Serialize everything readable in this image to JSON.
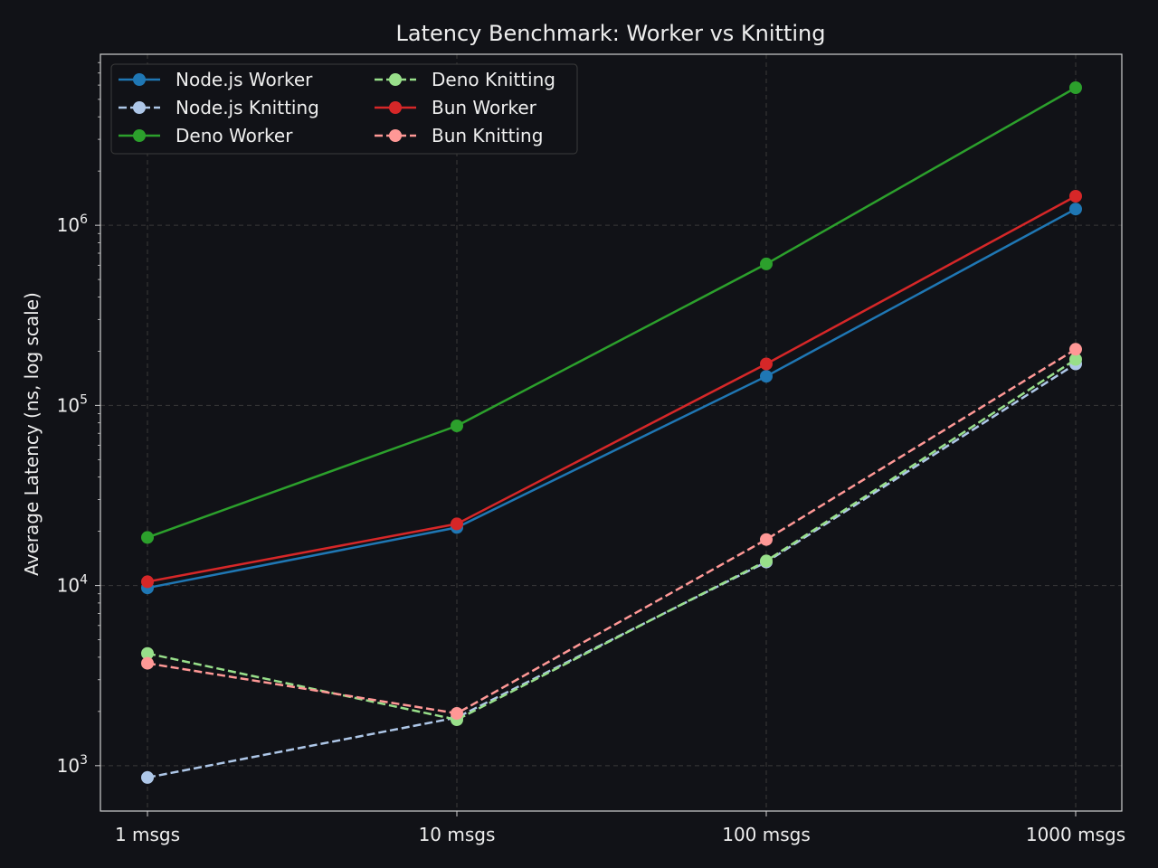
{
  "chart_data": {
    "type": "line",
    "title": "Latency Benchmark: Worker vs Knitting",
    "xlabel": "",
    "ylabel": "Average Latency (ns, log scale)",
    "yscale": "log",
    "ylim": [
      560,
      8900000
    ],
    "categories": [
      "1 msgs",
      "10 msgs",
      "100 msgs",
      "1000 msgs"
    ],
    "y_ticks": [
      {
        "value": 1000,
        "base": "10",
        "exp": "3"
      },
      {
        "value": 10000,
        "base": "10",
        "exp": "4"
      },
      {
        "value": 100000,
        "base": "10",
        "exp": "5"
      },
      {
        "value": 1000000,
        "base": "10",
        "exp": "6"
      }
    ],
    "grid": true,
    "legend_position": "top-left",
    "series": [
      {
        "name": "Node.js Worker",
        "color": "#1f77b4",
        "dashed": false,
        "values": [
          9700,
          21000,
          145000,
          1230000
        ]
      },
      {
        "name": "Node.js Knitting",
        "color": "#aec7e8",
        "dashed": true,
        "values": [
          860,
          1850,
          13500,
          170000
        ]
      },
      {
        "name": "Deno Worker",
        "color": "#2ca02c",
        "dashed": false,
        "values": [
          18500,
          77000,
          610000,
          5800000
        ]
      },
      {
        "name": "Deno Knitting",
        "color": "#98df8a",
        "dashed": true,
        "values": [
          4200,
          1800,
          13700,
          180000
        ]
      },
      {
        "name": "Bun Worker",
        "color": "#d62728",
        "dashed": false,
        "values": [
          10500,
          22000,
          170000,
          1450000
        ]
      },
      {
        "name": "Bun Knitting",
        "color": "#ff9896",
        "dashed": true,
        "values": [
          3700,
          1950,
          18000,
          205000
        ]
      }
    ]
  }
}
